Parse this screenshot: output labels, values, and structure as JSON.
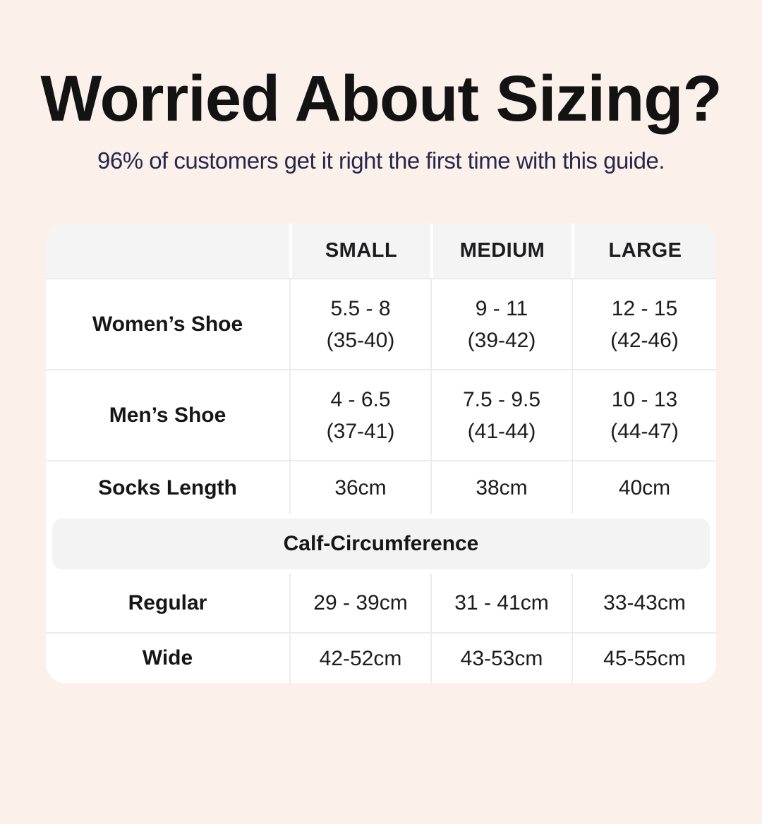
{
  "header": {
    "title": "Worried About Sizing?",
    "subtitle": "96% of customers get it right the first time with this guide."
  },
  "colors": {
    "background": "#fbf1ea",
    "card": "#ffffff",
    "header_band": "#f4f4f4",
    "divider": "#ececec",
    "title_text": "#131313",
    "subtitle_text": "#27274a",
    "body_text": "#1c1c1c"
  },
  "table": {
    "column_headers": [
      "SMALL",
      "MEDIUM",
      "LARGE"
    ],
    "rows": [
      {
        "label": "Women’s Shoe",
        "cells": [
          {
            "line1": "5.5 - 8",
            "line2": "(35-40)"
          },
          {
            "line1": "9 - 11",
            "line2": "(39-42)"
          },
          {
            "line1": "12 - 15",
            "line2": "(42-46)"
          }
        ]
      },
      {
        "label": "Men’s Shoe",
        "cells": [
          {
            "line1": "4 - 6.5",
            "line2": "(37-41)"
          },
          {
            "line1": "7.5 - 9.5",
            "line2": "(41-44)"
          },
          {
            "line1": "10 - 13",
            "line2": "(44-47)"
          }
        ]
      },
      {
        "label": "Socks Length",
        "cells": [
          {
            "line1": "36cm"
          },
          {
            "line1": "38cm"
          },
          {
            "line1": "40cm"
          }
        ]
      }
    ],
    "section_header": "Calf-Circumference",
    "section_rows": [
      {
        "label": "Regular",
        "cells": [
          {
            "line1": "29 - 39cm"
          },
          {
            "line1": "31 - 41cm"
          },
          {
            "line1": "33-43cm"
          }
        ]
      },
      {
        "label": "Wide",
        "cells": [
          {
            "line1": "42-52cm"
          },
          {
            "line1": "43-53cm"
          },
          {
            "line1": "45-55cm"
          }
        ]
      }
    ]
  },
  "chart_data": {
    "type": "table",
    "title": "Worried About Sizing?",
    "subtitle": "96% of customers get it right the first time with this guide.",
    "columns": [
      "",
      "SMALL",
      "MEDIUM",
      "LARGE"
    ],
    "rows": [
      [
        "Women’s Shoe",
        "5.5 - 8 (35-40)",
        "9 - 11 (39-42)",
        "12 - 15 (42-46)"
      ],
      [
        "Men’s Shoe",
        "4 - 6.5 (37-41)",
        "7.5 - 9.5 (41-44)",
        "10 - 13 (44-47)"
      ],
      [
        "Socks Length",
        "36cm",
        "38cm",
        "40cm"
      ],
      [
        "Calf-Circumference",
        "",
        "",
        ""
      ],
      [
        "Regular",
        "29 - 39cm",
        "31 - 41cm",
        "33-43cm"
      ],
      [
        "Wide",
        "42-52cm",
        "43-53cm",
        "45-55cm"
      ]
    ],
    "layout_hints": {
      "section_row_index": 3,
      "section_row_spans_all_columns": true,
      "grid": "light grey dividers, grey header band, white card on pink background"
    }
  }
}
